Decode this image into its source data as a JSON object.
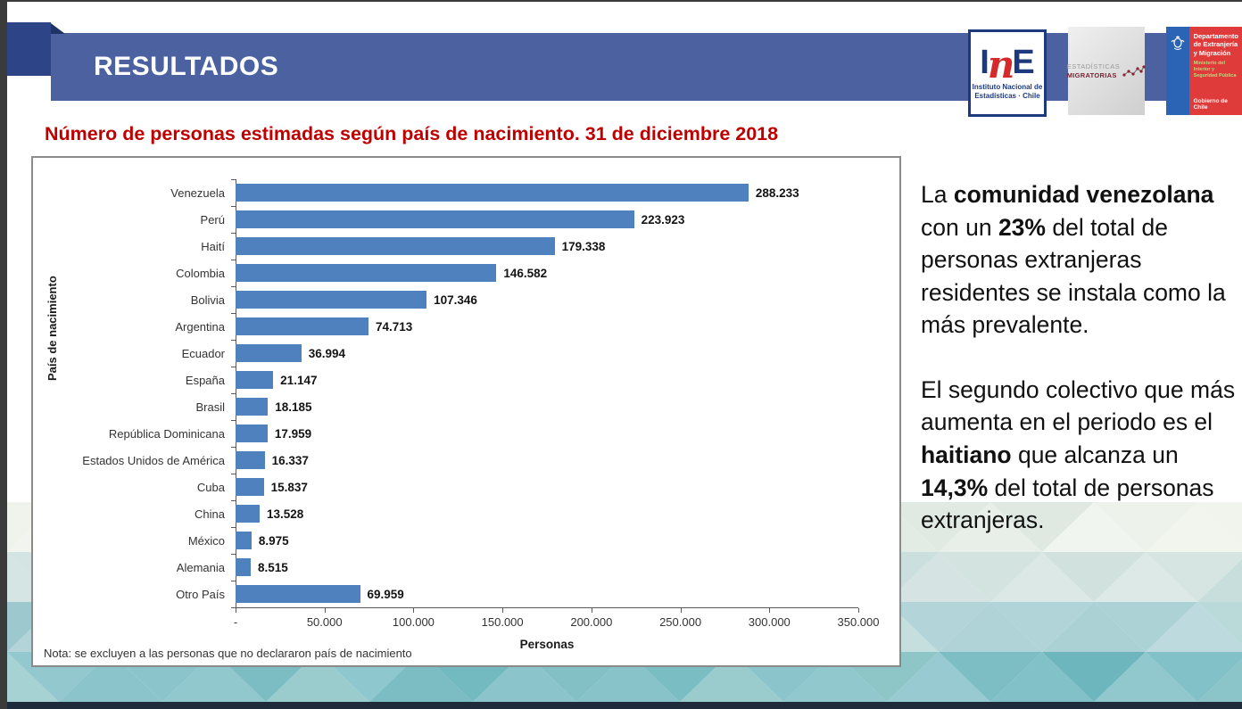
{
  "header": {
    "title": "RESULTADOS"
  },
  "logos": {
    "ine": {
      "letters": [
        "I",
        "n",
        "E"
      ],
      "caption_line1": "Instituto Nacional de",
      "caption_line2": "Estadísticas · Chile"
    },
    "migratorias": {
      "line1": "ESTADÍSTICAS",
      "line2": "MIGRATORIAS"
    },
    "departamento": {
      "name": "Departamento de Extranjería y Migración",
      "ministry": "Ministerio del Interior y Seguridad Pública",
      "footer": "Gobierno de Chile"
    }
  },
  "subtitle": "Número de personas estimadas según país de nacimiento. 31 de diciembre 2018",
  "chart_data": {
    "type": "bar",
    "orientation": "horizontal",
    "categories": [
      "Venezuela",
      "Perú",
      "Haití",
      "Colombia",
      "Bolivia",
      "Argentina",
      "Ecuador",
      "España",
      "Brasil",
      "República Dominicana",
      "Estados Unidos de América",
      "Cuba",
      "China",
      "México",
      "Alemania",
      "Otro País"
    ],
    "values": [
      288233,
      223923,
      179338,
      146582,
      107346,
      74713,
      36994,
      21147,
      18185,
      17959,
      16337,
      15837,
      13528,
      8975,
      8515,
      69959
    ],
    "value_labels": [
      "288.233",
      "223.923",
      "179.338",
      "146.582",
      "107.346",
      "74.713",
      "36.994",
      "21.147",
      "18.185",
      "17.959",
      "16.337",
      "15.837",
      "13.528",
      "8.975",
      "8.515",
      "69.959"
    ],
    "title": "",
    "xlabel": "Personas",
    "ylabel": "País de nacimiento",
    "xlim": [
      0,
      350000
    ],
    "x_ticks": [
      "-",
      "50.000",
      "100.000",
      "150.000",
      "200.000",
      "250.000",
      "300.000",
      "350.000"
    ],
    "grid": false,
    "legend": "none",
    "bar_color": "#4E81BD",
    "note": "Nota: se excluyen a las personas que no declararon país de nacimiento"
  },
  "commentary": {
    "paragraph1": [
      {
        "t": "La ",
        "b": false
      },
      {
        "t": "comunidad venezolana",
        "b": true
      },
      {
        "t": " con un ",
        "b": false
      },
      {
        "t": "23%",
        "b": true
      },
      {
        "t": " del total de personas extranjeras residentes se instala como la más prevalente.",
        "b": false
      }
    ],
    "paragraph2": [
      {
        "t": "El segundo colectivo que más aumenta en el periodo es el ",
        "b": false
      },
      {
        "t": "haitiano",
        "b": true
      },
      {
        "t": " que alcanza un ",
        "b": false
      },
      {
        "t": "14,3%",
        "b": true
      },
      {
        "t": " del total de personas extranjeras.",
        "b": false
      }
    ]
  },
  "colors": {
    "banner": "#4B61A0",
    "ribbon": "#2D4587",
    "ribbon_fold": "#1E3366",
    "subtitle_red": "#C00000",
    "bar": "#4E81BD",
    "bottom_bar": "#1F2B3A",
    "pattern_teal_dark": "#6DB6BD",
    "pattern_teal_light": "#EDF2EA"
  }
}
